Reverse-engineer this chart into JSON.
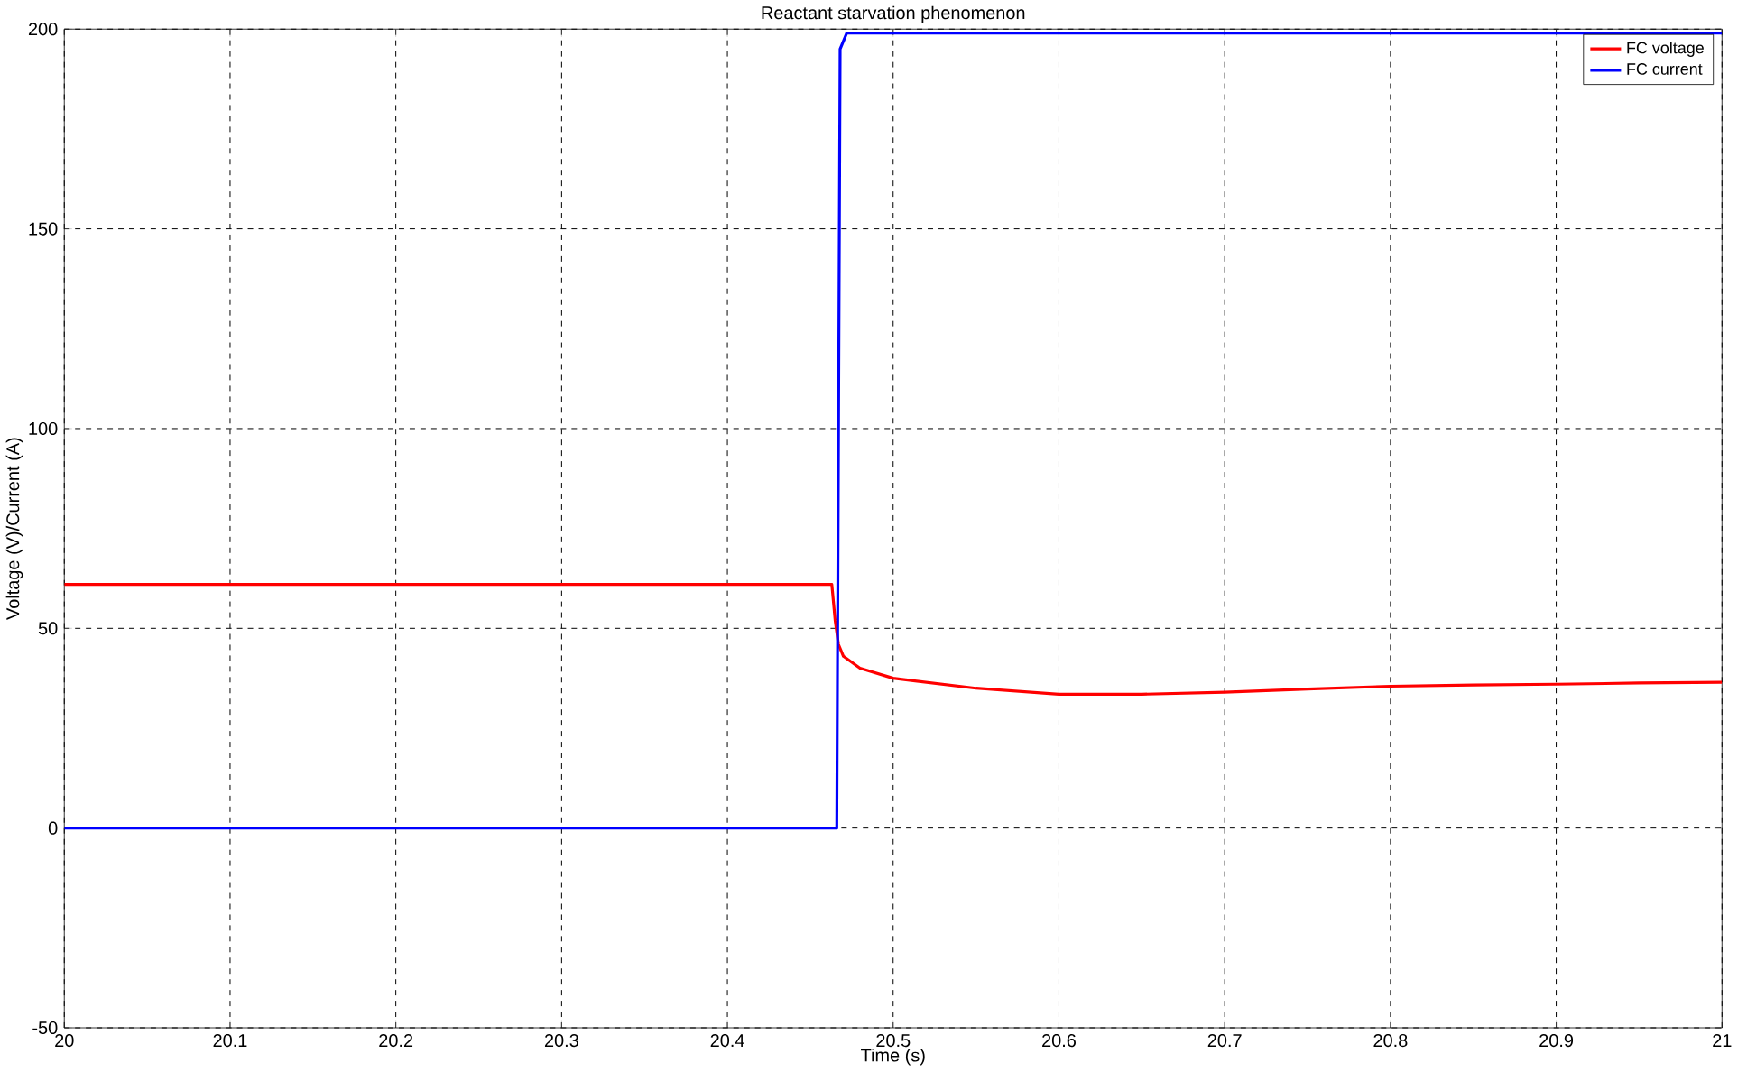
{
  "chart_data": {
    "type": "line",
    "title": "Reactant starvation phenomenon",
    "xlabel": "Time (s)",
    "ylabel": "Voltage (V)/Current (A)",
    "xlim": [
      20,
      21
    ],
    "xticks": [
      20,
      20.1,
      20.2,
      20.3,
      20.4,
      20.5,
      20.6,
      20.7,
      20.8,
      20.9,
      21
    ],
    "ylim": [
      -50,
      200
    ],
    "yticks": [
      -50,
      0,
      50,
      100,
      150,
      200
    ],
    "grid": true,
    "legend": "top right",
    "line_style": "solid",
    "marker": "none",
    "series": [
      {
        "name": "FC voltage",
        "color": "#ff0000",
        "x": [
          20,
          20.2,
          20.4,
          20.463,
          20.465,
          20.467,
          20.47,
          20.48,
          20.5,
          20.55,
          20.6,
          20.65,
          20.7,
          20.75,
          20.8,
          20.85,
          20.9,
          20.95,
          21
        ],
        "values": [
          61,
          61,
          61,
          61,
          52,
          46,
          43,
          40,
          37.5,
          35,
          33.5,
          33.5,
          34,
          34.8,
          35.5,
          35.8,
          36,
          36.3,
          36.5
        ]
      },
      {
        "name": "FC current",
        "color": "#0000ff",
        "x": [
          20,
          20.2,
          20.4,
          20.466,
          20.468,
          20.472,
          20.6,
          20.8,
          21
        ],
        "values": [
          0,
          0,
          0,
          0,
          195,
          199,
          199,
          199,
          199
        ]
      }
    ]
  }
}
